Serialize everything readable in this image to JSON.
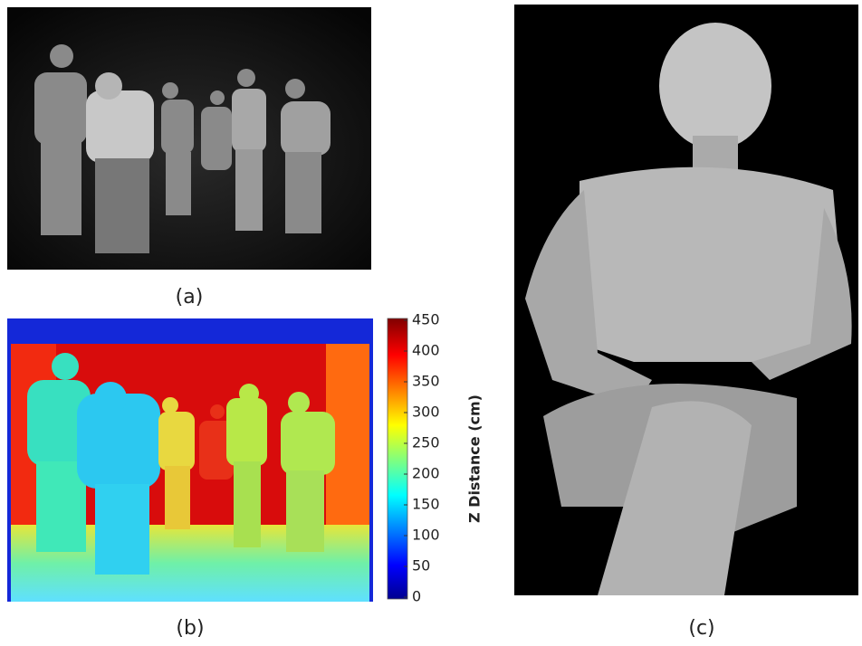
{
  "panels": [
    {
      "label": "(a)"
    },
    {
      "label": "(b)"
    },
    {
      "label": "(c)"
    }
  ],
  "colorbar": {
    "title": "Z Distance (cm)",
    "lim": [
      0,
      450
    ],
    "ticks": [
      0,
      50,
      100,
      150,
      200,
      250,
      300,
      350,
      400,
      450
    ]
  }
}
